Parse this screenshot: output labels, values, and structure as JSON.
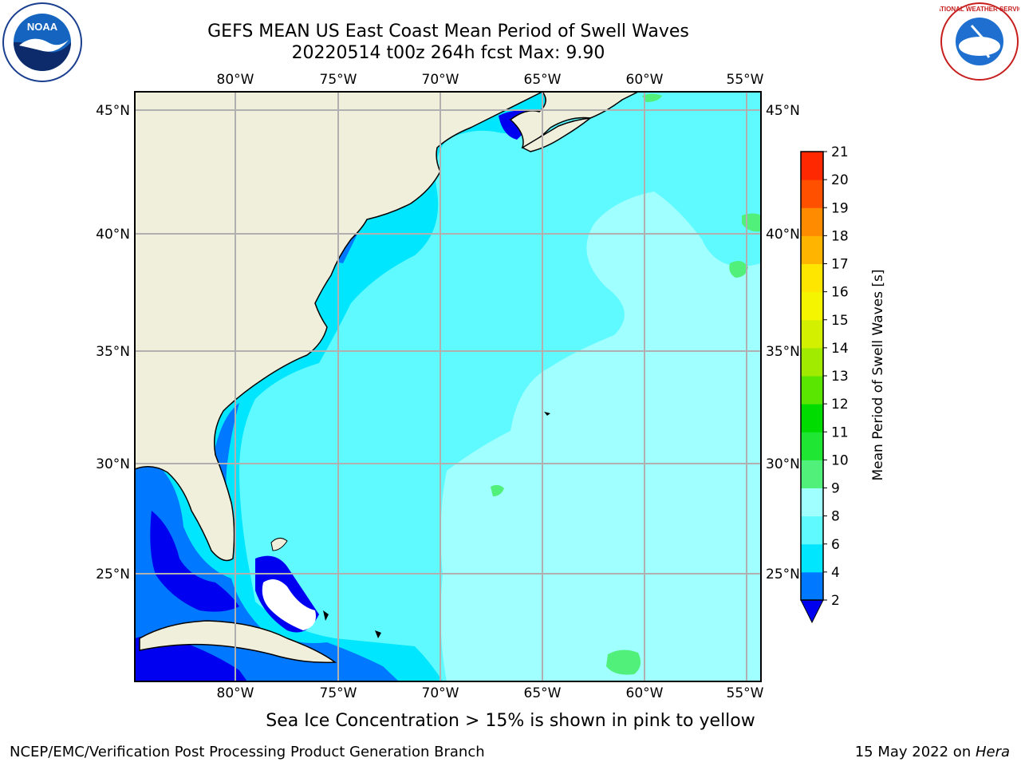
{
  "header": {
    "title_line1": "GEFS MEAN US East Coast Mean Period of Swell Waves",
    "title_line2": "20220514 t00z 264h fcst   Max: 9.90"
  },
  "logos": {
    "left": "noaa-logo",
    "left_text": "NOAA",
    "right": "national-weather-service-logo",
    "right_text": "NATIONAL WEATHER SERVICE"
  },
  "map": {
    "region": "US East Coast / Western North Atlantic",
    "lon_labels": [
      "80°W",
      "75°W",
      "70°W",
      "65°W",
      "60°W",
      "55°W"
    ],
    "lat_labels": [
      "45°N",
      "40°N",
      "35°N",
      "30°N",
      "25°N"
    ],
    "land_color": "#efefdc",
    "grid": true
  },
  "colorbar": {
    "label": "Mean Period of Swell Waves [s]",
    "tick_labels": [
      "2",
      "4",
      "6",
      "8",
      "9",
      "10",
      "11",
      "12",
      "13",
      "14",
      "15",
      "16",
      "17",
      "18",
      "19",
      "20",
      "21"
    ],
    "colors": [
      "#0000f0",
      "#0078ff",
      "#00e6ff",
      "#5ffaff",
      "#a0ffff",
      "#50f07a",
      "#1ee632",
      "#00dc00",
      "#5ae600",
      "#a0eb00",
      "#d2f000",
      "#f5f500",
      "#ffe600",
      "#ffb400",
      "#ff8c00",
      "#ff5000",
      "#ff2800",
      "#ff0000"
    ],
    "extend": "min"
  },
  "footer": {
    "note": "Sea Ice Concentration > 15% is shown in pink to yellow",
    "credit": "NCEP/EMC/Verification Post Processing Product Generation Branch",
    "date": "15 May 2022 on ",
    "machine": "Hera"
  }
}
